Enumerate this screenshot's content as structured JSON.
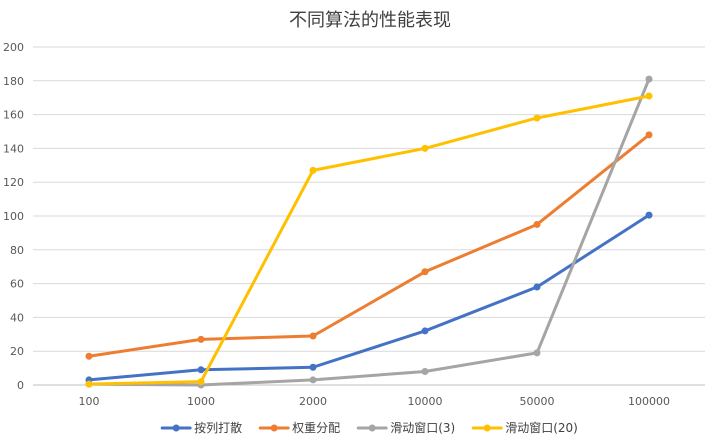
{
  "chart_data": {
    "type": "line",
    "title": "不同算法的性能表现",
    "xlabel": "",
    "ylabel": "",
    "categories": [
      "100",
      "1000",
      "2000",
      "10000",
      "50000",
      "100000"
    ],
    "y_ticks": [
      "0",
      "20",
      "40",
      "60",
      "80",
      "100",
      "120",
      "140",
      "160",
      "180",
      "200"
    ],
    "ylim": [
      0,
      200
    ],
    "grid": true,
    "legend_position": "bottom",
    "series": [
      {
        "name": "按列打散",
        "color": "#4472C4",
        "values": [
          3,
          9,
          10.5,
          32,
          58,
          100.5
        ]
      },
      {
        "name": "权重分配",
        "color": "#ED7D31",
        "values": [
          17,
          27,
          29,
          67,
          95,
          148
        ]
      },
      {
        "name": "滑动窗口(3)",
        "color": "#A5A5A5",
        "values": [
          0.5,
          0,
          3,
          8,
          19,
          181
        ]
      },
      {
        "name": "滑动窗口(20)",
        "color": "#FFC000",
        "values": [
          0.5,
          2,
          127,
          140,
          158,
          171
        ]
      }
    ]
  }
}
